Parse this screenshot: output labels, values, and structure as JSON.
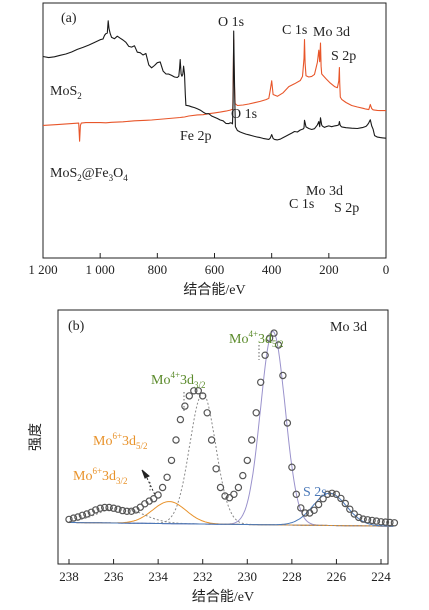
{
  "chart_data": [
    {
      "panel": "(a)",
      "type": "line",
      "xlabel": "结合能/eV",
      "xlim": [
        1200,
        0
      ],
      "x_ticks": [
        1200,
        1000,
        800,
        600,
        400,
        200,
        0
      ],
      "x_tick_labels": [
        "1 200",
        "1 000",
        "800",
        "600",
        "400",
        "200",
        "0"
      ],
      "series": [
        {
          "name": "MoS2",
          "color": "#e8562a",
          "x": [
            1200,
            1150,
            1100,
            1075,
            1072,
            1069,
            1066,
            1050,
            1000,
            980,
            960,
            940,
            920,
            900,
            880,
            860,
            840,
            820,
            800,
            780,
            760,
            740,
            720,
            712,
            705,
            690,
            660,
            640,
            620,
            600,
            580,
            560,
            545,
            536,
            533,
            531,
            528,
            520,
            500,
            480,
            460,
            440,
            420,
            410,
            405,
            400,
            395,
            380,
            360,
            340,
            320,
            300,
            292,
            287,
            285,
            283,
            280,
            270,
            260,
            250,
            240,
            235,
            232,
            229,
            227,
            225,
            222,
            210,
            195,
            180,
            170,
            165,
            163,
            162,
            160,
            155,
            140,
            120,
            100,
            80,
            70,
            60,
            55,
            50,
            45,
            40,
            30,
            20,
            10,
            0
          ],
          "y": [
            0.52,
            0.523,
            0.527,
            0.529,
            0.458,
            0.52,
            0.529,
            0.531,
            0.531,
            0.53,
            0.532,
            0.533,
            0.534,
            0.536,
            0.538,
            0.539,
            0.54,
            0.541,
            0.543,
            0.545,
            0.547,
            0.549,
            0.551,
            0.552,
            0.553,
            0.557,
            0.561,
            0.562,
            0.566,
            0.569,
            0.572,
            0.576,
            0.58,
            0.584,
            0.855,
            0.7,
            0.606,
            0.598,
            0.6,
            0.604,
            0.609,
            0.614,
            0.621,
            0.626,
            0.657,
            0.695,
            0.641,
            0.634,
            0.648,
            0.672,
            0.683,
            0.696,
            0.712,
            0.782,
            0.857,
            0.764,
            0.715,
            0.71,
            0.712,
            0.72,
            0.768,
            0.815,
            0.77,
            0.843,
            0.752,
            0.722,
            0.718,
            0.703,
            0.686,
            0.672,
            0.668,
            0.695,
            0.747,
            0.69,
            0.631,
            0.622,
            0.61,
            0.598,
            0.592,
            0.587,
            0.584,
            0.582,
            0.602,
            0.586,
            0.581,
            0.58,
            0.579,
            0.578,
            0.578,
            0.578
          ]
        },
        {
          "name": "MoS2@Fe3O4",
          "color": "#1a1a1a",
          "x": [
            1200,
            1180,
            1160,
            1140,
            1120,
            1100,
            1080,
            1060,
            1040,
            1020,
            1000,
            990,
            985,
            980,
            975,
            972,
            969,
            965,
            960,
            950,
            940,
            930,
            920,
            910,
            900,
            890,
            880,
            870,
            860,
            850,
            840,
            830,
            820,
            810,
            800,
            790,
            780,
            770,
            760,
            750,
            740,
            730,
            725,
            722,
            720,
            717,
            714,
            711,
            708,
            705,
            702,
            700,
            690,
            680,
            670,
            660,
            650,
            640,
            630,
            620,
            610,
            600,
            590,
            580,
            570,
            560,
            550,
            545,
            540,
            537,
            535,
            533,
            531,
            529,
            527,
            520,
            510,
            500,
            490,
            480,
            470,
            460,
            450,
            440,
            430,
            420,
            410,
            405,
            400,
            395,
            390,
            380,
            370,
            360,
            350,
            340,
            330,
            320,
            310,
            300,
            290,
            287,
            285,
            283,
            280,
            270,
            260,
            250,
            240,
            235,
            232,
            229,
            227,
            225,
            222,
            215,
            210,
            200,
            190,
            180,
            170,
            165,
            163,
            161,
            159,
            155,
            140,
            120,
            100,
            90,
            80,
            70,
            65,
            60,
            55,
            50,
            45,
            40,
            30,
            20,
            10,
            0
          ],
          "y": [
            0.79,
            0.786,
            0.789,
            0.795,
            0.8,
            0.808,
            0.818,
            0.826,
            0.835,
            0.845,
            0.856,
            0.859,
            0.873,
            0.88,
            0.882,
            0.93,
            0.9,
            0.88,
            0.865,
            0.86,
            0.87,
            0.862,
            0.855,
            0.846,
            0.83,
            0.827,
            0.832,
            0.807,
            0.805,
            0.796,
            0.802,
            0.757,
            0.746,
            0.755,
            0.766,
            0.769,
            0.733,
            0.722,
            0.721,
            0.716,
            0.71,
            0.708,
            0.713,
            0.745,
            0.778,
            0.722,
            0.713,
            0.72,
            0.752,
            0.722,
            0.642,
            0.599,
            0.597,
            0.593,
            0.59,
            0.585,
            0.58,
            0.572,
            0.566,
            0.566,
            0.557,
            0.552,
            0.547,
            0.541,
            0.538,
            0.528,
            0.527,
            0.53,
            0.529,
            0.526,
            0.612,
            0.89,
            0.76,
            0.62,
            0.515,
            0.5,
            0.494,
            0.49,
            0.486,
            0.483,
            0.48,
            0.477,
            0.474,
            0.472,
            0.469,
            0.467,
            0.465,
            0.47,
            0.484,
            0.469,
            0.465,
            0.463,
            0.466,
            0.472,
            0.478,
            0.484,
            0.49,
            0.496,
            0.494,
            0.502,
            0.506,
            0.51,
            0.54,
            0.53,
            0.514,
            0.508,
            0.504,
            0.507,
            0.522,
            0.535,
            0.515,
            0.55,
            0.536,
            0.521,
            0.517,
            0.512,
            0.515,
            0.518,
            0.515,
            0.518,
            0.52,
            0.522,
            0.535,
            0.524,
            0.518,
            0.514,
            0.511,
            0.509,
            0.508,
            0.51,
            0.512,
            0.516,
            0.522,
            0.53,
            0.542,
            0.518,
            0.505,
            0.48,
            0.474,
            0.472,
            0.471,
            0.47
          ]
        }
      ],
      "annotations": [
        {
          "text": "(a)"
        },
        {
          "text": "O 1s"
        },
        {
          "text": "C 1s"
        },
        {
          "text": "Mo 3d"
        },
        {
          "text": "S 2p"
        },
        {
          "text": "Fe 2p"
        },
        {
          "text": "O 1s"
        },
        {
          "text": "C 1s"
        },
        {
          "text": "Mo 3d"
        },
        {
          "text": "S 2p"
        }
      ]
    },
    {
      "panel": "(b)",
      "type": "scatter",
      "ylabel": "强度",
      "xlabel": "结合能/eV",
      "xlim": [
        238,
        223
      ],
      "x_ticks": [
        238,
        236,
        234,
        232,
        230,
        228,
        226,
        224
      ],
      "x_tick_labels": [
        "238",
        "236",
        "234",
        "232",
        "230",
        "228",
        "226",
        "224"
      ],
      "baseline": {
        "x": [
          238.0,
          223.5
        ],
        "y": [
          8.7,
          7.6
        ]
      },
      "peaks": [
        {
          "label": "Mo4+3d5/2",
          "center": 228.85,
          "height": 57.0,
          "sigma": 0.55,
          "color": "#9a92cc",
          "style": "solid"
        },
        {
          "label": "Mo4+3d3/2",
          "center": 232.0,
          "height": 38.5,
          "sigma": 0.58,
          "color": "#8a8a8a",
          "style": "dotted"
        },
        {
          "label": "Mo6+3d5/2",
          "center": 233.5,
          "height": 6.5,
          "sigma": 0.75,
          "color": "#e8922a",
          "style": "solid"
        },
        {
          "label": "Mo6+3d3/2",
          "center": 235.7,
          "height": 4.5,
          "sigma": 1.0,
          "color": "#888888",
          "style": "dotted"
        },
        {
          "label": "S 2s",
          "center": 226.3,
          "height": 9.5,
          "sigma": 0.75,
          "color": "#4a78b8",
          "style": "solid"
        }
      ],
      "points_x": [
        238.0,
        237.8,
        237.6,
        237.4,
        237.2,
        237.0,
        236.8,
        236.6,
        236.4,
        236.2,
        236.0,
        235.8,
        235.6,
        235.4,
        235.2,
        235.0,
        234.8,
        234.6,
        234.4,
        234.2,
        234.0,
        233.8,
        233.6,
        233.4,
        233.2,
        233.0,
        232.8,
        232.6,
        232.4,
        232.2,
        232.0,
        231.8,
        231.6,
        231.4,
        231.2,
        231.0,
        230.8,
        230.6,
        230.4,
        230.2,
        230.0,
        229.8,
        229.6,
        229.4,
        229.2,
        229.0,
        228.8,
        228.6,
        228.4,
        228.2,
        228.0,
        227.8,
        227.6,
        227.4,
        227.2,
        227.0,
        226.8,
        226.6,
        226.4,
        226.2,
        226.0,
        225.8,
        225.6,
        225.4,
        225.2,
        225.0,
        224.8,
        224.6,
        224.4,
        224.2,
        224.0,
        223.8,
        223.6,
        223.4
      ],
      "points_y": [
        9.6,
        10.0,
        10.3,
        10.8,
        11.2,
        11.7,
        12.4,
        12.9,
        13.1,
        13.1,
        12.9,
        12.6,
        12.2,
        12.0,
        12.0,
        12.4,
        13.2,
        14.2,
        15.0,
        15.7,
        16.8,
        19.0,
        22.0,
        27.0,
        33.0,
        39.0,
        43.0,
        46.0,
        47.5,
        47.5,
        46.0,
        41.0,
        33.0,
        24.5,
        19.0,
        16.5,
        16.0,
        17.0,
        19.0,
        22.5,
        27.0,
        33.0,
        41.0,
        50.0,
        58.0,
        63.0,
        64.5,
        61.0,
        52.0,
        38.0,
        25.0,
        17.0,
        13.0,
        11.5,
        11.5,
        12.3,
        14.0,
        15.7,
        17.0,
        17.3,
        17.0,
        15.8,
        14.3,
        12.6,
        11.2,
        10.2,
        9.7,
        9.5,
        9.3,
        9.1,
        8.9,
        8.8,
        8.7,
        8.6
      ],
      "labels": [
        {
          "text": "(b)"
        },
        {
          "text": "Mo 3d"
        },
        {
          "text": "Mo",
          "sup": "4+",
          "rest": "3d",
          "sub": "5/2",
          "color": "#5a8a2a"
        },
        {
          "text": "Mo",
          "sup": "4+",
          "rest": "3d",
          "sub": "3/2",
          "color": "#5a8a2a"
        },
        {
          "text": "Mo",
          "sup": "6+",
          "rest": "3d",
          "sub": "5/2",
          "color": "#e8922a"
        },
        {
          "text": "Mo",
          "sup": "6+",
          "rest": "3d",
          "sub": "3/2",
          "color": "#e8922a"
        },
        {
          "text": "S 2s",
          "color": "#4a78b8"
        }
      ],
      "data_marker_color": "#555555"
    }
  ],
  "legend_labels": {
    "mos2": {
      "base": "MoS",
      "sub": "2"
    },
    "composite": {
      "p1": "MoS",
      "s1": "2",
      "p2": "@Fe",
      "s2": "3",
      "p3": "O",
      "s3": "4"
    }
  }
}
